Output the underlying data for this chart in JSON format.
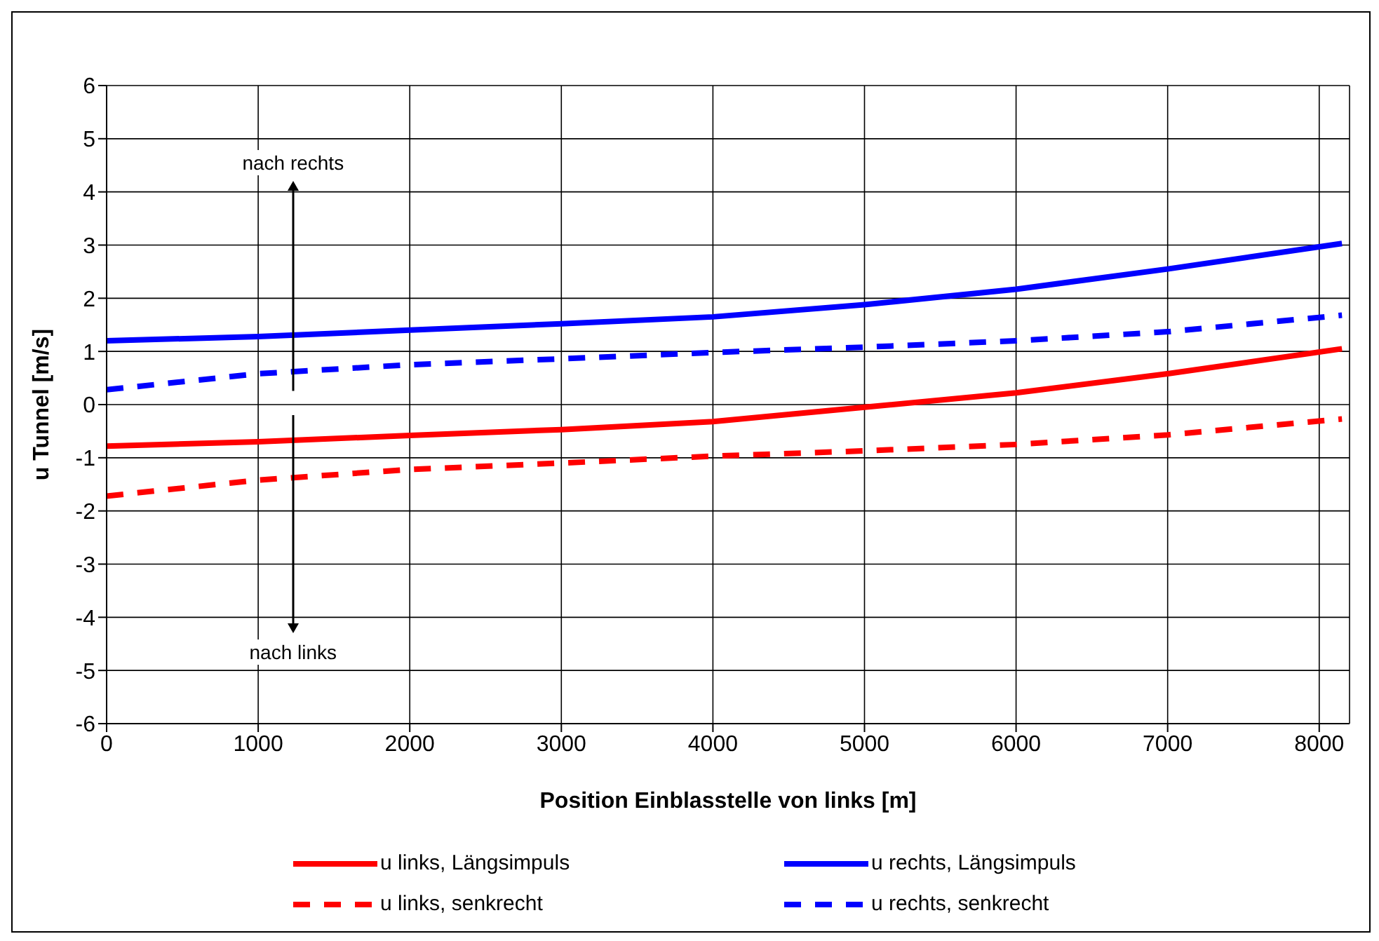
{
  "chart_data": {
    "type": "line",
    "xlabel": "Position Einblasstelle von links [m]",
    "ylabel": "u Tunnel [m/s]",
    "x": [
      0,
      1000,
      2000,
      3000,
      4000,
      5000,
      6000,
      7000,
      8150
    ],
    "series": [
      {
        "name": "u links, Längsimpuls",
        "color": "#ff0000",
        "line_style": "solid",
        "values": [
          -0.78,
          -0.7,
          -0.58,
          -0.47,
          -0.32,
          -0.05,
          0.22,
          0.58,
          1.05
        ]
      },
      {
        "name": "u rechts, Längsimpuls",
        "color": "#0000ff",
        "line_style": "solid",
        "values": [
          1.2,
          1.28,
          1.4,
          1.52,
          1.65,
          1.88,
          2.17,
          2.55,
          3.03
        ]
      },
      {
        "name": "u links, senkrecht",
        "color": "#ff0000",
        "line_style": "dashed",
        "values": [
          -1.72,
          -1.42,
          -1.22,
          -1.1,
          -0.97,
          -0.87,
          -0.75,
          -0.57,
          -0.27
        ]
      },
      {
        "name": "u rechts, senkrecht",
        "color": "#0000ff",
        "line_style": "dashed",
        "values": [
          0.28,
          0.58,
          0.75,
          0.86,
          0.98,
          1.08,
          1.2,
          1.37,
          1.68
        ]
      }
    ],
    "xlim": [
      0,
      8200
    ],
    "xticks": [
      0,
      1000,
      2000,
      3000,
      4000,
      5000,
      6000,
      7000,
      8000
    ],
    "ylim": [
      -6,
      6
    ],
    "yticks": [
      -6,
      -5,
      -4,
      -3,
      -2,
      -1,
      0,
      1,
      2,
      3,
      4,
      5,
      6
    ],
    "grid": true,
    "legend": "bottom",
    "marker": "none",
    "annotations": [
      "nach rechts",
      "nach links"
    ]
  }
}
